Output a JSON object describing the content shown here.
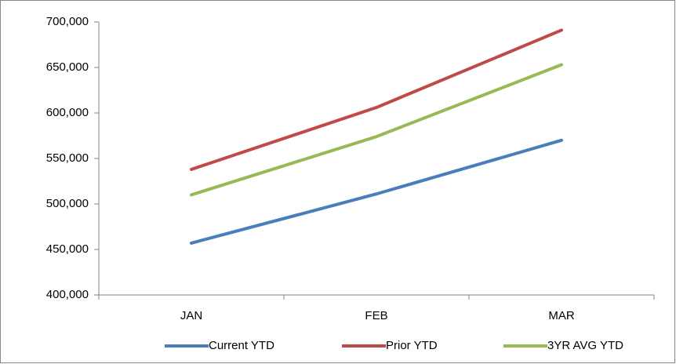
{
  "chart_data": {
    "type": "line",
    "categories": [
      "JAN",
      "FEB",
      "MAR"
    ],
    "series": [
      {
        "name": "Current YTD",
        "color": "#4a7ebb",
        "values": [
          457000,
          511000,
          570000
        ]
      },
      {
        "name": "Prior YTD",
        "color": "#be4b48",
        "values": [
          538000,
          606000,
          691000
        ]
      },
      {
        "name": "3YR AVG YTD",
        "color": "#98b954",
        "values": [
          510000,
          574000,
          653000
        ]
      }
    ],
    "ylim": [
      400000,
      700000
    ],
    "yticks": [
      {
        "value": 400000,
        "label": "400,000"
      },
      {
        "value": 450000,
        "label": "450,000"
      },
      {
        "value": 500000,
        "label": "500,000"
      },
      {
        "value": 550000,
        "label": "550,000"
      },
      {
        "value": 600000,
        "label": "600,000"
      },
      {
        "value": 650000,
        "label": "650,000"
      },
      {
        "value": 700000,
        "label": "700,000"
      }
    ],
    "grid": false,
    "legend": "bottom"
  }
}
